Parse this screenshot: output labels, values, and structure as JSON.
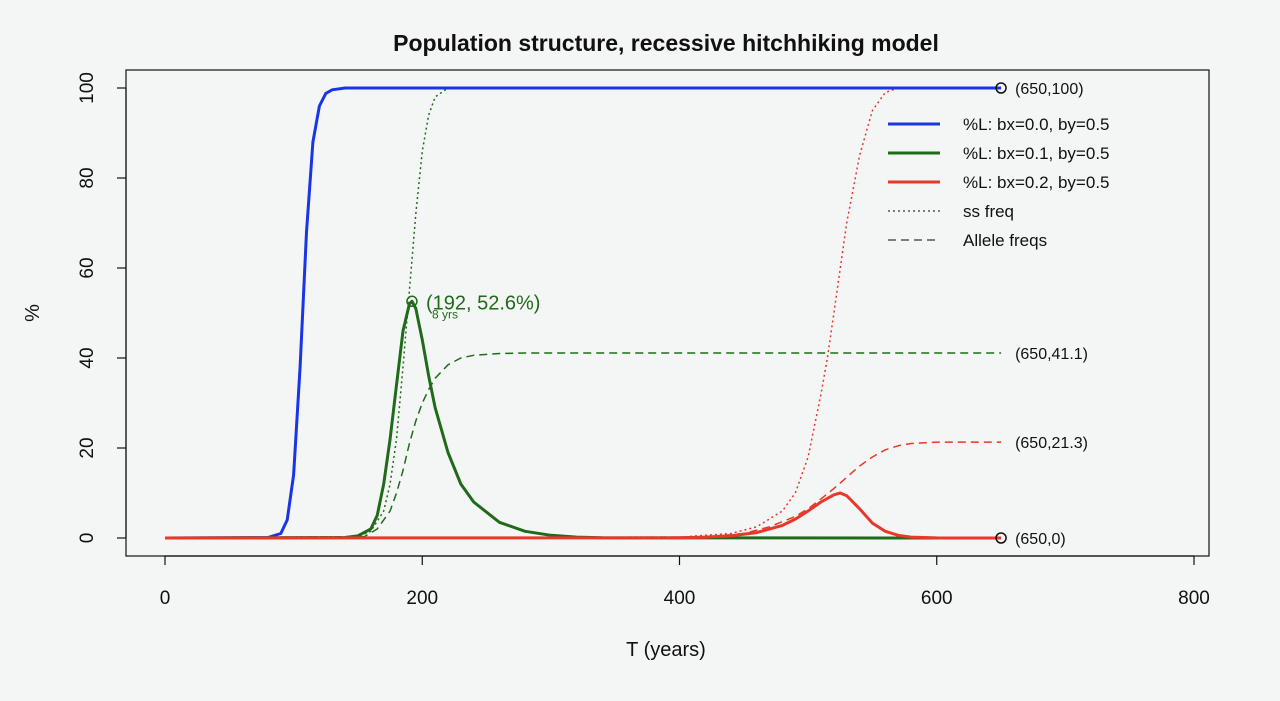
{
  "chart_data": {
    "type": "line",
    "title": "Population structure, recessive hitchhiking model",
    "xlabel": "T (years)",
    "ylabel": "%",
    "xlim": [
      0,
      800
    ],
    "ylim": [
      0,
      100
    ],
    "xticks": [
      "0",
      "200",
      "400",
      "600",
      "800"
    ],
    "yticks": [
      "0",
      "20",
      "40",
      "60",
      "80",
      "100"
    ],
    "legend_position": "top-right",
    "legend": [
      {
        "label": "%L: bx=0.0, by=0.5",
        "color": "#1a35e6",
        "style": "solid"
      },
      {
        "label": "%L: bx=0.1, by=0.5",
        "color": "#1f6b1a",
        "style": "solid"
      },
      {
        "label": "%L: bx=0.2, by=0.5",
        "color": "#e8382a",
        "style": "solid"
      },
      {
        "label": "ss freq",
        "color": "#555555",
        "style": "dotted"
      },
      {
        "label": "Allele freqs",
        "color": "#555555",
        "style": "dashed"
      }
    ],
    "series": [
      {
        "name": "%L: bx=0.0, by=0.5",
        "color": "#1a35e6",
        "style": "solid",
        "x": [
          0,
          80,
          90,
          95,
          100,
          105,
          110,
          115,
          120,
          125,
          130,
          140,
          650
        ],
        "y": [
          0,
          0.1,
          1,
          4,
          14,
          38,
          68,
          88,
          96,
          98.8,
          99.6,
          100,
          100
        ]
      },
      {
        "name": "%L: bx=0.1, by=0.5",
        "color": "#1f6b1a",
        "style": "solid",
        "x": [
          0,
          140,
          150,
          160,
          165,
          170,
          175,
          180,
          185,
          190,
          192,
          195,
          200,
          205,
          210,
          220,
          230,
          240,
          260,
          280,
          300,
          320,
          340,
          650
        ],
        "y": [
          0,
          0.1,
          0.5,
          2,
          5,
          12,
          22,
          34,
          46,
          52,
          52.6,
          51,
          44,
          36,
          29,
          19,
          12,
          8,
          3.5,
          1.5,
          0.6,
          0.2,
          0.05,
          0
        ]
      },
      {
        "name": "%L: bx=0.2, by=0.5",
        "color": "#e8382a",
        "style": "solid",
        "x": [
          0,
          400,
          420,
          440,
          460,
          480,
          490,
          500,
          510,
          520,
          525,
          530,
          540,
          550,
          560,
          570,
          580,
          600,
          650
        ],
        "y": [
          0,
          0.05,
          0.2,
          0.5,
          1.2,
          2.8,
          4.2,
          6,
          8,
          9.6,
          10,
          9.4,
          6.5,
          3.3,
          1.5,
          0.6,
          0.2,
          0.03,
          0
        ]
      },
      {
        "name": "ss freq bx=0.1",
        "color": "#1f6b1a",
        "style": "dotted",
        "x": [
          0,
          150,
          160,
          170,
          175,
          180,
          185,
          190,
          195,
          200,
          205,
          210,
          220,
          650
        ],
        "y": [
          0,
          0.3,
          1.5,
          6,
          12,
          22,
          38,
          55,
          72,
          86,
          94,
          98,
          100,
          100
        ]
      },
      {
        "name": "ss freq bx=0.2",
        "color": "#e8382a",
        "style": "dotted",
        "x": [
          0,
          400,
          440,
          460,
          480,
          490,
          500,
          510,
          515,
          520,
          525,
          530,
          540,
          550,
          560,
          570,
          650
        ],
        "y": [
          0,
          0.2,
          1,
          2.5,
          6,
          10,
          18,
          32,
          40,
          50,
          60,
          70,
          85,
          95,
          99,
          100,
          100
        ]
      },
      {
        "name": "Allele freqs bx=0.1",
        "color": "#1f6b1a",
        "style": "dashed",
        "x": [
          0,
          155,
          165,
          175,
          180,
          185,
          190,
          195,
          200,
          205,
          210,
          220,
          230,
          240,
          260,
          280,
          300,
          650
        ],
        "y": [
          0,
          0.3,
          2,
          6,
          10,
          15,
          21,
          26,
          30,
          33,
          35.5,
          38.5,
          40,
          40.6,
          41,
          41.1,
          41.1,
          41.1
        ]
      },
      {
        "name": "Allele freqs bx=0.2",
        "color": "#e8382a",
        "style": "dashed",
        "x": [
          0,
          420,
          450,
          470,
          490,
          500,
          510,
          520,
          530,
          540,
          550,
          560,
          570,
          580,
          600,
          650
        ],
        "y": [
          0,
          0.2,
          1,
          2.5,
          4.8,
          6.5,
          8.7,
          11,
          13.5,
          16,
          18,
          19.6,
          20.5,
          21,
          21.3,
          21.3
        ]
      }
    ],
    "markers": [
      {
        "x": 650,
        "y": 100,
        "label": "(650,100)",
        "color": "#111111"
      },
      {
        "x": 650,
        "y": 0,
        "label": "(650,0)",
        "color": "#111111"
      },
      {
        "x": 192,
        "y": 52.6,
        "label": "(192, 52.6%)",
        "color": "#1f6b1a"
      }
    ],
    "annotations": [
      {
        "x": 650,
        "y": 41.1,
        "label": "(650,41.1)"
      },
      {
        "x": 650,
        "y": 21.3,
        "label": "(650,21.3)"
      },
      {
        "x": 192,
        "y": 52.6,
        "label": "8 yrs"
      }
    ]
  }
}
